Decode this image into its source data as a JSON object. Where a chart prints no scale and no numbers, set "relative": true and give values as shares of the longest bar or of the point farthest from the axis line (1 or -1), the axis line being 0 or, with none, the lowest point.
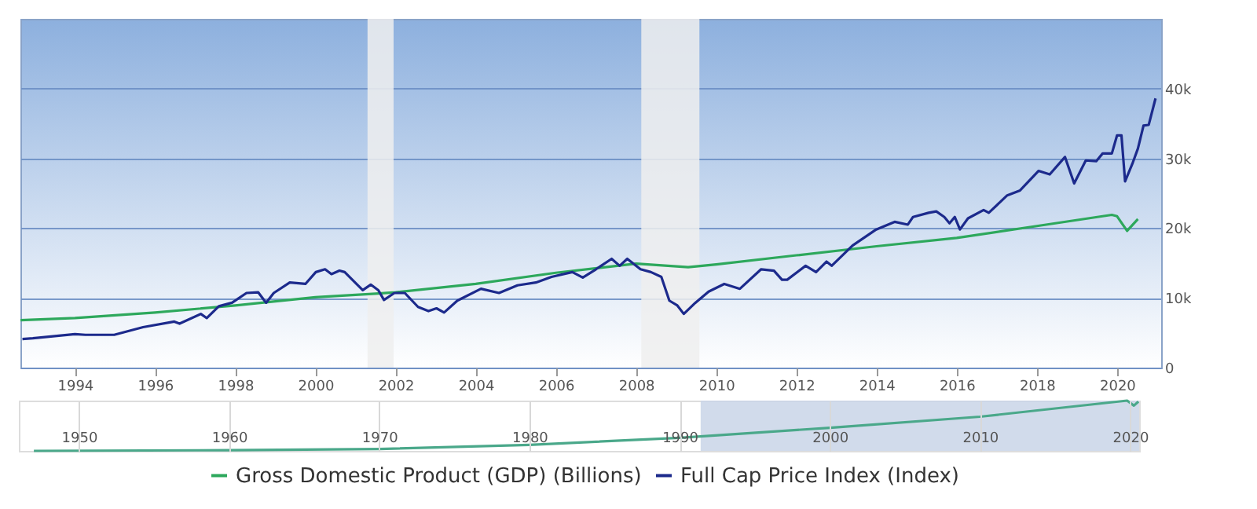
{
  "chart_data": [
    {
      "type": "line",
      "xlim": [
        1992.64,
        2021.1
      ],
      "ylim": [
        0,
        50000
      ],
      "xticks": [
        1994,
        1996,
        1998,
        2000,
        2002,
        2004,
        2006,
        2008,
        2010,
        2012,
        2014,
        2016,
        2018,
        2020
      ],
      "yticks": [
        0,
        {
          "value": 10000,
          "label": "10k"
        },
        {
          "value": 20000,
          "label": "20k"
        },
        {
          "value": 30000,
          "label": "30k"
        },
        {
          "value": 40000,
          "label": "40k"
        }
      ],
      "grid": "y",
      "legend": "bottom",
      "bands": [
        {
          "axis": "x",
          "from": 2001.3,
          "to": 2001.95,
          "color": "#eeeeee"
        },
        {
          "axis": "x",
          "from": 2008.13,
          "to": 2009.58,
          "color": "#eeeeee"
        }
      ],
      "series": [
        {
          "name": "Gross Domestic Product (GDP) (Billions)",
          "color": "#2da85c",
          "x": [
            1992.64,
            1994,
            1996,
            1998,
            2000,
            2001.5,
            2002,
            2004,
            2006,
            2008,
            2009.3,
            2010,
            2012,
            2014,
            2016,
            2018,
            2019.87,
            2020.0,
            2020.25,
            2020.52
          ],
          "values": [
            6800,
            7100,
            7900,
            8900,
            10100,
            10600,
            10800,
            12000,
            13600,
            14900,
            14400,
            14800,
            16100,
            17400,
            18600,
            20300,
            21900,
            21700,
            19600,
            21300
          ]
        },
        {
          "name": "Full Cap Price Index (Index)",
          "color": "#1c2a8c",
          "x": [
            1992.69,
            1992.95,
            1994.0,
            1994.26,
            1994.98,
            1995.7,
            1996.48,
            1996.61,
            1997.14,
            1997.29,
            1997.59,
            1997.92,
            1998.28,
            1998.57,
            1998.77,
            1998.96,
            1999.36,
            1999.75,
            2000.01,
            2000.24,
            2000.4,
            2000.6,
            2000.73,
            2000.92,
            2001.18,
            2001.38,
            2001.57,
            2001.71,
            2001.97,
            2002.23,
            2002.56,
            2002.82,
            2003.02,
            2003.21,
            2003.54,
            2004.13,
            2004.58,
            2005.04,
            2005.5,
            2005.89,
            2006.41,
            2006.67,
            2007.0,
            2007.39,
            2007.59,
            2007.78,
            2008.11,
            2008.37,
            2008.63,
            2008.83,
            2009.03,
            2009.19,
            2009.48,
            2009.81,
            2010.2,
            2010.59,
            2011.12,
            2011.44,
            2011.64,
            2011.77,
            2012.23,
            2012.49,
            2012.75,
            2012.88,
            2013.4,
            2013.99,
            2014.45,
            2014.78,
            2014.91,
            2015.3,
            2015.49,
            2015.69,
            2015.82,
            2015.95,
            2016.08,
            2016.28,
            2016.67,
            2016.8,
            2017.26,
            2017.58,
            2018.04,
            2018.32,
            2018.7,
            2018.93,
            2019.22,
            2019.48,
            2019.64,
            2019.87,
            2020.0,
            2020.11,
            2020.2,
            2020.38,
            2020.52,
            2020.66,
            2020.79,
            2020.96
          ],
          "values": [
            4100,
            4200,
            4800,
            4700,
            4700,
            5800,
            6600,
            6300,
            7700,
            7100,
            8800,
            9300,
            10700,
            10800,
            9300,
            10700,
            12200,
            12000,
            13700,
            14100,
            13400,
            13900,
            13700,
            12600,
            11100,
            11900,
            11100,
            9700,
            10700,
            10700,
            8700,
            8100,
            8500,
            7900,
            9600,
            11300,
            10700,
            11800,
            12200,
            13000,
            13700,
            12900,
            14100,
            15600,
            14600,
            15600,
            14100,
            13700,
            13000,
            9600,
            8900,
            7700,
            9300,
            10900,
            12000,
            11300,
            14100,
            13900,
            12600,
            12600,
            14600,
            13700,
            15200,
            14600,
            17500,
            19800,
            20900,
            20500,
            21600,
            22200,
            22400,
            21600,
            20700,
            21600,
            19800,
            21400,
            22600,
            22200,
            24700,
            25400,
            28200,
            27700,
            30200,
            26400,
            29700,
            29600,
            30700,
            30700,
            33300,
            33300,
            26700,
            29200,
            31400,
            34700,
            34800,
            38600
          ]
        }
      ]
    },
    {
      "type": "line",
      "relative": true,
      "xlim": [
        1946,
        2020.6
      ],
      "xticks": [
        1950,
        1960,
        1970,
        1980,
        1990,
        2000,
        2010,
        2020
      ],
      "grid": "x",
      "tick_labels": "x",
      "bands": [
        {
          "axis": "x",
          "from": 1991.4,
          "to": 2020.6,
          "color": "#c9d5e8"
        }
      ],
      "series": [
        {
          "color": "#4aa88a",
          "x": [
            1947,
            1960,
            1970,
            1980,
            1990,
            2000,
            2010,
            2019.8,
            2020.25,
            2020.55
          ],
          "values": [
            0,
            0.014,
            0.038,
            0.119,
            0.26,
            0.46,
            0.68,
            1,
            0.9,
            0.98
          ]
        }
      ]
    }
  ]
}
